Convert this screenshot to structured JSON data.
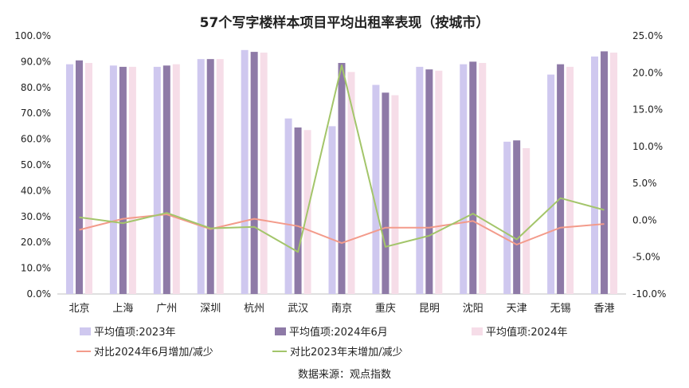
{
  "chart_data": {
    "type": "bar",
    "title": "57个写字楼样本项目平均出租率表现（按城市）",
    "categories": [
      "北京",
      "上海",
      "广州",
      "深圳",
      "杭州",
      "武汉",
      "南京",
      "重庆",
      "昆明",
      "沈阳",
      "天津",
      "无锡",
      "香港"
    ],
    "series": [
      {
        "name": "平均值项:2023年",
        "type": "bar",
        "axis": "left",
        "color": "#cfc8ef",
        "values": [
          89.0,
          88.5,
          88.0,
          91.0,
          94.5,
          68.0,
          65.0,
          81.0,
          88.0,
          89.0,
          59.0,
          85.0,
          92.0
        ]
      },
      {
        "name": "平均值项:2024年6月",
        "type": "bar",
        "axis": "left",
        "color": "#8e7aa7",
        "values": [
          90.5,
          88.0,
          88.5,
          91.0,
          93.8,
          64.5,
          89.5,
          78.0,
          87.0,
          90.0,
          59.5,
          89.0,
          94.0
        ]
      },
      {
        "name": "平均值项:2024年",
        "type": "bar",
        "axis": "left",
        "color": "#f6dde8",
        "values": [
          89.5,
          88.0,
          89.0,
          91.0,
          93.5,
          63.5,
          86.0,
          77.0,
          86.5,
          89.5,
          56.5,
          88.0,
          93.5
        ]
      },
      {
        "name": "对比2024年6月增加/减少",
        "type": "line",
        "axis": "right",
        "color": "#f39b8b",
        "values": [
          -1.3,
          0.2,
          0.8,
          -1.2,
          0.2,
          -0.8,
          -3.1,
          -1.0,
          -1.0,
          -0.1,
          -3.3,
          -1.0,
          -0.5
        ]
      },
      {
        "name": "对比2023年末增加/减少",
        "type": "line",
        "axis": "right",
        "color": "#a3c56a",
        "values": [
          0.4,
          -0.4,
          1.0,
          -1.1,
          -0.9,
          -4.3,
          21.0,
          -3.6,
          -2.1,
          0.9,
          -2.6,
          3.0,
          1.4
        ]
      }
    ],
    "y_left": {
      "min": 0,
      "max": 100,
      "step": 10,
      "tick_labels": [
        "0.0%",
        "10.0%",
        "20.0%",
        "30.0%",
        "40.0%",
        "50.0%",
        "60.0%",
        "70.0%",
        "80.0%",
        "90.0%",
        "100.0%"
      ]
    },
    "y_right": {
      "min": -10,
      "max": 25,
      "step": 5,
      "tick_labels": [
        "-10.0%",
        "-5.0%",
        "0.0%",
        "5.0%",
        "10.0%",
        "15.0%",
        "20.0%",
        "25.0%"
      ]
    },
    "grid": false,
    "legend_position": "bottom",
    "source": "数据来源：观点指数"
  }
}
